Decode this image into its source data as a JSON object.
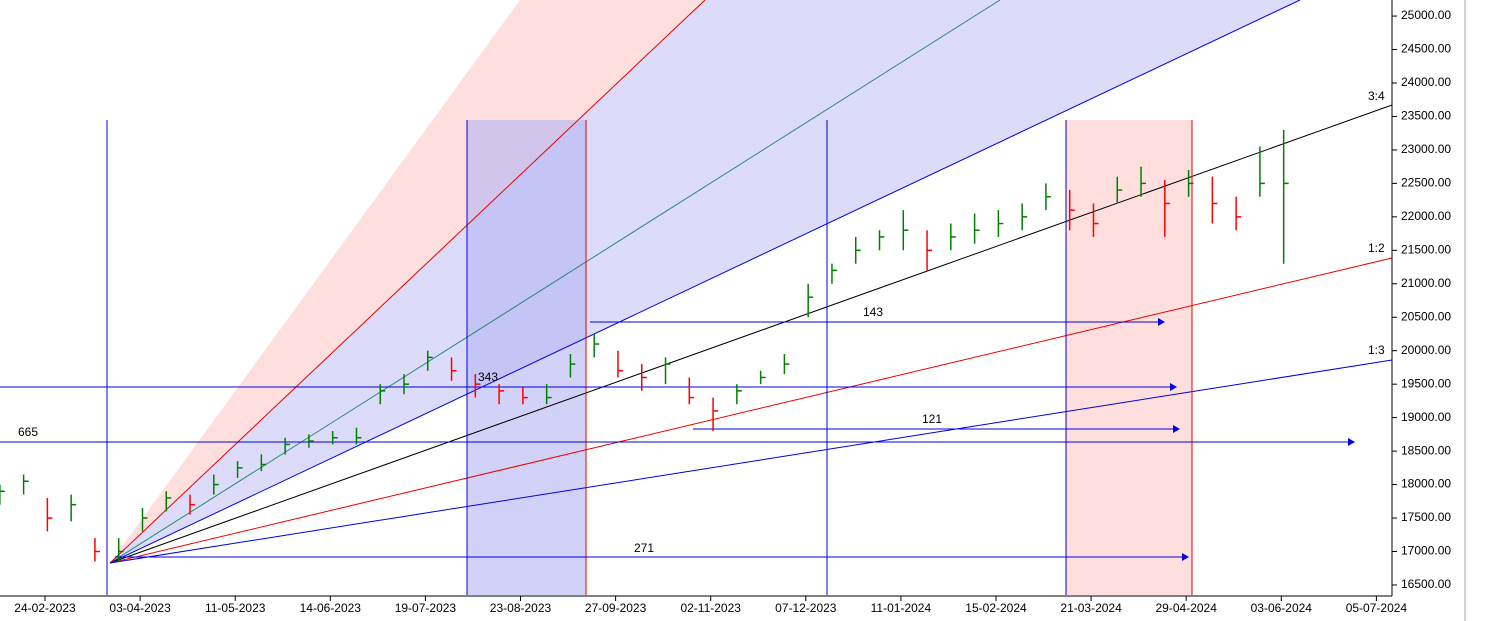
{
  "chart_data": {
    "type": "ohlc",
    "categories": [
      "24-02-2023",
      "03-04-2023",
      "11-05-2023",
      "14-06-2023",
      "19-07-2023",
      "23-08-2023",
      "27-09-2023",
      "02-11-2023",
      "07-12-2023",
      "11-01-2024",
      "15-02-2024",
      "21-03-2024",
      "29-04-2024",
      "03-06-2024",
      "05-07-2024"
    ],
    "series": [
      {
        "up_color": "#008000",
        "down_color": "#ff0000",
        "high": [
          18000,
          18150,
          17800,
          17850,
          17200,
          17200,
          17650,
          17900,
          17850,
          18150,
          18350,
          18450,
          18700,
          18750,
          18800,
          18850,
          19500,
          19650,
          20000,
          19900,
          19650,
          19500,
          19450,
          19500,
          19950,
          20250,
          20000,
          19800,
          19900,
          19600,
          19300,
          19500,
          19700,
          19950,
          21000,
          21300,
          21700,
          21800,
          22100,
          21800,
          21900,
          22050,
          22100,
          22200,
          22500,
          22400,
          22200,
          22600,
          22750,
          22550,
          22700,
          22600,
          22300,
          23050,
          23300
        ],
        "low": [
          17700,
          17850,
          17300,
          17450,
          16850,
          16850,
          17300,
          17600,
          17550,
          17850,
          18100,
          18200,
          18450,
          18550,
          18600,
          18600,
          19200,
          19350,
          19700,
          19550,
          19300,
          19200,
          19200,
          19200,
          19600,
          19900,
          19600,
          19400,
          19500,
          19200,
          18800,
          19200,
          19500,
          19650,
          20500,
          21000,
          21300,
          21500,
          21500,
          21200,
          21500,
          21600,
          21700,
          21800,
          22100,
          21800,
          21700,
          22200,
          22300,
          21700,
          22300,
          21900,
          21800,
          22300,
          21300
        ],
        "close": [
          17900,
          18050,
          17500,
          17700,
          17000,
          17000,
          17500,
          17800,
          17700,
          18000,
          18250,
          18300,
          18600,
          18650,
          18700,
          18700,
          19400,
          19500,
          19900,
          19700,
          19500,
          19400,
          19300,
          19300,
          19800,
          20100,
          19700,
          19600,
          19800,
          19300,
          19100,
          19400,
          19600,
          19800,
          20800,
          21200,
          21500,
          21700,
          21800,
          21500,
          21700,
          21800,
          21900,
          22000,
          22300,
          22100,
          21900,
          22400,
          22500,
          22200,
          22500,
          22200,
          22000,
          22500,
          22500
        ]
      }
    ],
    "ylim": [
      16350,
      25240
    ],
    "yticks": [
      {
        "value": 16500,
        "label": "16500.00"
      },
      {
        "value": 17000,
        "label": "17000.00"
      },
      {
        "value": 17500,
        "label": "17500.00"
      },
      {
        "value": 18000,
        "label": "18000.00"
      },
      {
        "value": 18500,
        "label": "18500.00"
      },
      {
        "value": 19000,
        "label": "19000.00"
      },
      {
        "value": 19500,
        "label": "19500.00"
      },
      {
        "value": 20000,
        "label": "20000.00"
      },
      {
        "value": 20500,
        "label": "20500.00"
      },
      {
        "value": 21000,
        "label": "21000.00"
      },
      {
        "value": 21500,
        "label": "21500.00"
      },
      {
        "value": 22000,
        "label": "22000.00"
      },
      {
        "value": 22500,
        "label": "22500.00"
      },
      {
        "value": 23000,
        "label": "23000.00"
      },
      {
        "value": 23500,
        "label": "23500.00"
      },
      {
        "value": 24000,
        "label": "24000.00"
      },
      {
        "value": 24500,
        "label": "24500.00"
      },
      {
        "value": 25000,
        "label": "25000.00"
      }
    ],
    "fan_ratios": [
      "3:4",
      "1:2",
      "1:3"
    ],
    "measure_labels": [
      143,
      343,
      121,
      665,
      271
    ]
  }
}
